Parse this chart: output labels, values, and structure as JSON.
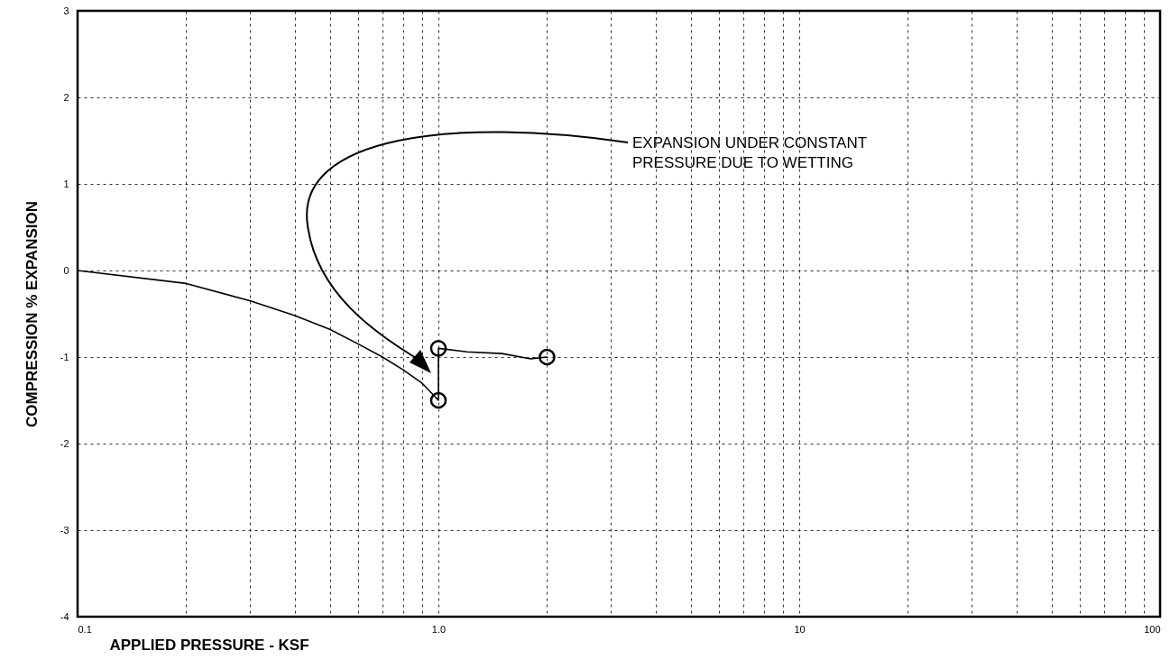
{
  "chart_data": {
    "type": "line",
    "xlabel": "APPLIED PRESSURE - KSF",
    "ylabel": "COMPRESSION % EXPANSION",
    "log": "x",
    "grid": true,
    "line_style": "solid",
    "xlim": [
      0.1,
      100
    ],
    "ylim": [
      -4,
      3
    ],
    "xticks": [
      0.1,
      {
        "value": 0.2,
        "label": null
      },
      {
        "value": 0.3,
        "label": null
      },
      {
        "value": 0.4,
        "label": null
      },
      {
        "value": 0.5,
        "label": null
      },
      {
        "value": 0.6,
        "label": null
      },
      {
        "value": 0.7,
        "label": null
      },
      {
        "value": 0.8,
        "label": null
      },
      {
        "value": 0.9,
        "label": null
      },
      {
        "value": 1,
        "label": "1.0"
      },
      {
        "value": 2,
        "label": null
      },
      {
        "value": 3,
        "label": null
      },
      {
        "value": 4,
        "label": null
      },
      {
        "value": 5,
        "label": null
      },
      {
        "value": 6,
        "label": null
      },
      {
        "value": 7,
        "label": null
      },
      {
        "value": 8,
        "label": null
      },
      {
        "value": 9,
        "label": null
      },
      10,
      {
        "value": 20,
        "label": null
      },
      {
        "value": 30,
        "label": null
      },
      {
        "value": 40,
        "label": null
      },
      {
        "value": 50,
        "label": null
      },
      {
        "value": 60,
        "label": null
      },
      {
        "value": 70,
        "label": null
      },
      {
        "value": 80,
        "label": null
      },
      {
        "value": 90,
        "label": null
      },
      100
    ],
    "yticks": [
      -4,
      -3,
      -2,
      -1,
      0,
      1,
      2,
      3
    ],
    "series": [
      {
        "type": "line",
        "marker": "none",
        "color": "#000000",
        "x": [
          0.1,
          0.2,
          0.3,
          0.4,
          0.5,
          0.6,
          0.7,
          0.8,
          0.9,
          1,
          1,
          1.2,
          1.5,
          1.8,
          2
        ],
        "values": [
          0,
          -0.15,
          -0.35,
          -0.52,
          -0.68,
          -0.85,
          -1.0,
          -1.15,
          -1.3,
          -1.5,
          -0.9,
          -0.94,
          -0.96,
          -1.02,
          -1.0
        ]
      },
      {
        "type": "scatter",
        "marker": "circle",
        "color": "#000000",
        "x": [
          1,
          1,
          2
        ],
        "values": [
          -0.9,
          -1.5,
          -1.0
        ]
      }
    ],
    "annotations": [
      "EXPANSION UNDER CONSTANT\nPRESSURE DUE TO WETTING"
    ]
  }
}
